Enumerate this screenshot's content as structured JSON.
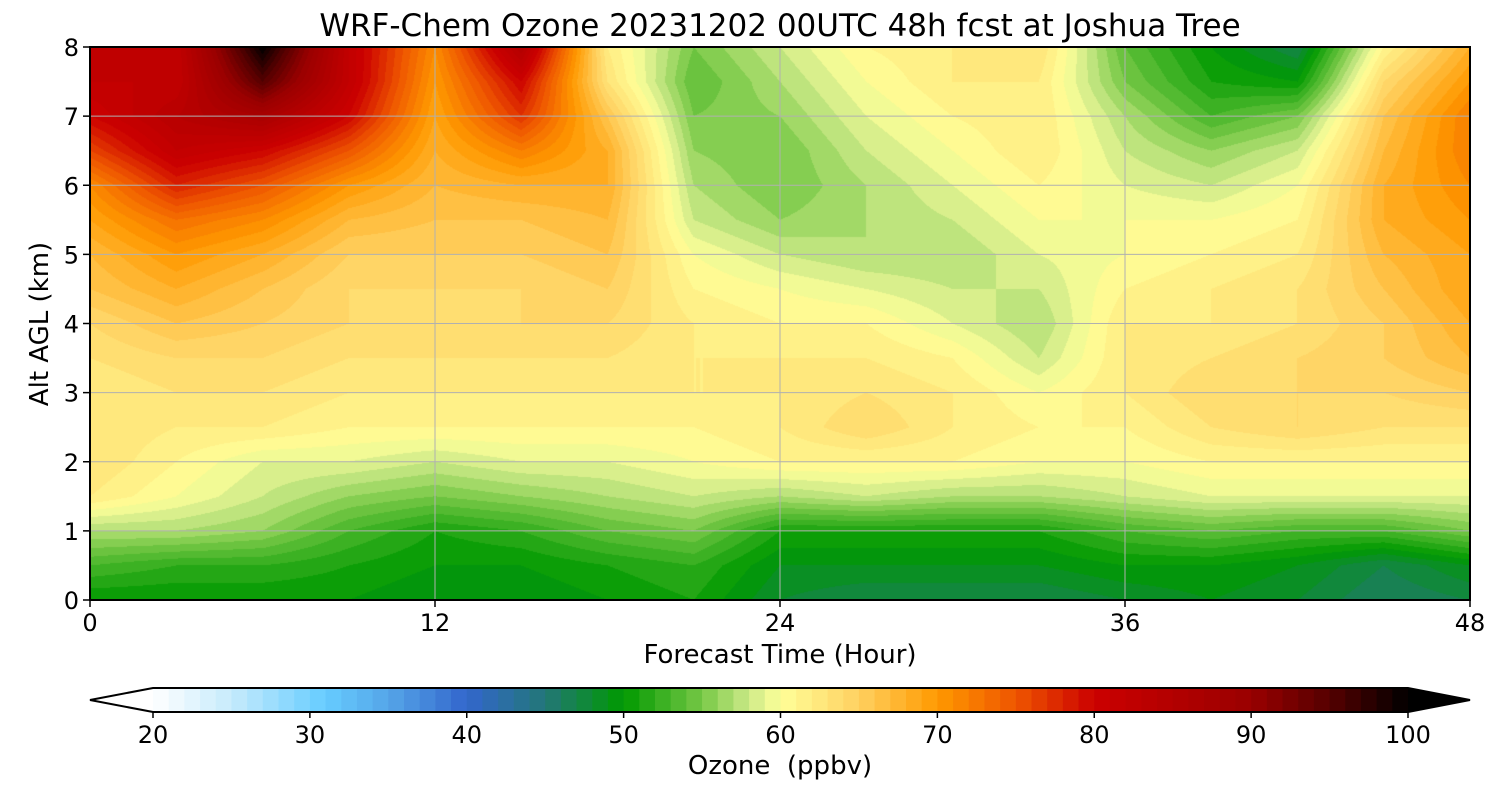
{
  "chart_data": {
    "type": "heatmap",
    "title": "WRF-Chem Ozone  20231202 00UTC 48h fcst at Joshua Tree",
    "xlabel": "Forecast Time (Hour)",
    "ylabel": "Alt AGL (km)",
    "xlim": [
      0,
      48
    ],
    "ylim": [
      0,
      8
    ],
    "xticks": [
      "0",
      "12",
      "24",
      "36",
      "48"
    ],
    "yticks": [
      "0",
      "1",
      "2",
      "3",
      "4",
      "5",
      "6",
      "7",
      "8"
    ],
    "grid": true,
    "x": [
      0,
      3,
      6,
      9,
      12,
      15,
      18,
      21,
      24,
      27,
      30,
      33,
      36,
      39,
      42,
      45,
      48
    ],
    "y": [
      0,
      0.5,
      1,
      1.5,
      2,
      2.5,
      3,
      3.5,
      4,
      4.5,
      5,
      5.5,
      6,
      6.5,
      7,
      7.5,
      8
    ],
    "z_by_time": [
      [
        50,
        53,
        57,
        62,
        63,
        63,
        62,
        63,
        64,
        66,
        67,
        69,
        71,
        76,
        80,
        82,
        82
      ],
      [
        50,
        52,
        57,
        60,
        61,
        62,
        63,
        64,
        66,
        68,
        70,
        73,
        78,
        82,
        84,
        82,
        82
      ],
      [
        50,
        52,
        56,
        58,
        59,
        62,
        63,
        64,
        65,
        66,
        68,
        71,
        75,
        80,
        87,
        95,
        100
      ],
      [
        50,
        51,
        53,
        56,
        59,
        61,
        62,
        63,
        64,
        64,
        65,
        67,
        70,
        75,
        80,
        82,
        82
      ],
      [
        49,
        50,
        51,
        55,
        58,
        61,
        62,
        63,
        63,
        64,
        65,
        66,
        67,
        68,
        69,
        70,
        71
      ],
      [
        49,
        50,
        52,
        56,
        59,
        61,
        62,
        63,
        64,
        64,
        65,
        66,
        68,
        72,
        77,
        80,
        85
      ],
      [
        50,
        51,
        54,
        57,
        59,
        61,
        62,
        63,
        64,
        65,
        66,
        67,
        68,
        68,
        66,
        63,
        62
      ],
      [
        51,
        52,
        55,
        58,
        60,
        61,
        62,
        62,
        62,
        61,
        60,
        58,
        57,
        56,
        55,
        54,
        55
      ],
      [
        48,
        49,
        51,
        57,
        61,
        62,
        62,
        62,
        61,
        60,
        58,
        56,
        55,
        55,
        56,
        57,
        58
      ],
      [
        47,
        49,
        51,
        58,
        61,
        64,
        63,
        62,
        61,
        59,
        57,
        57,
        57,
        58,
        59,
        60,
        61
      ],
      [
        47,
        49,
        51,
        57,
        61,
        62,
        62,
        61,
        59,
        58,
        57,
        58,
        59,
        60,
        61,
        62,
        62
      ],
      [
        47,
        49,
        51,
        57,
        60,
        61,
        60,
        58,
        57,
        58,
        59,
        60,
        61,
        62,
        62,
        62,
        63
      ],
      [
        48,
        50,
        53,
        58,
        60,
        61,
        62,
        62,
        62,
        61,
        60,
        60,
        59,
        58,
        57,
        55,
        54
      ],
      [
        49,
        50,
        54,
        59,
        61,
        63,
        64,
        63,
        62,
        62,
        61,
        60,
        58,
        56,
        53,
        51,
        50
      ],
      [
        48,
        49,
        53,
        59,
        61,
        64,
        64,
        64,
        63,
        63,
        62,
        61,
        60,
        58,
        55,
        50,
        47
      ],
      [
        46,
        47,
        53,
        59,
        61,
        63,
        64,
        65,
        65,
        66,
        67,
        68,
        68,
        67,
        66,
        64,
        61
      ],
      [
        47,
        49,
        55,
        59,
        61,
        63,
        65,
        67,
        68,
        69,
        69,
        70,
        71,
        72,
        72,
        70,
        68
      ]
    ],
    "colorbar": {
      "label": "Ozone  (ppbv)",
      "range": [
        20,
        100
      ],
      "step": 1,
      "extend": "both",
      "ticks": [
        "20",
        "30",
        "40",
        "50",
        "60",
        "70",
        "80",
        "90",
        "100"
      ],
      "anchors": [
        [
          20,
          "#ffffff"
        ],
        [
          25,
          "#c6ebfc"
        ],
        [
          31,
          "#66ccff"
        ],
        [
          35,
          "#55a5e8"
        ],
        [
          40,
          "#3366cc"
        ],
        [
          45,
          "#227777"
        ],
        [
          50,
          "#009900"
        ],
        [
          55,
          "#77c846"
        ],
        [
          58,
          "#ccea88"
        ],
        [
          60,
          "#ffff99"
        ],
        [
          65,
          "#ffd060"
        ],
        [
          70,
          "#ff9900"
        ],
        [
          75,
          "#ee5500"
        ],
        [
          80,
          "#cc0000"
        ],
        [
          90,
          "#990000"
        ],
        [
          95,
          "#550000"
        ],
        [
          100,
          "#000000"
        ]
      ]
    }
  }
}
